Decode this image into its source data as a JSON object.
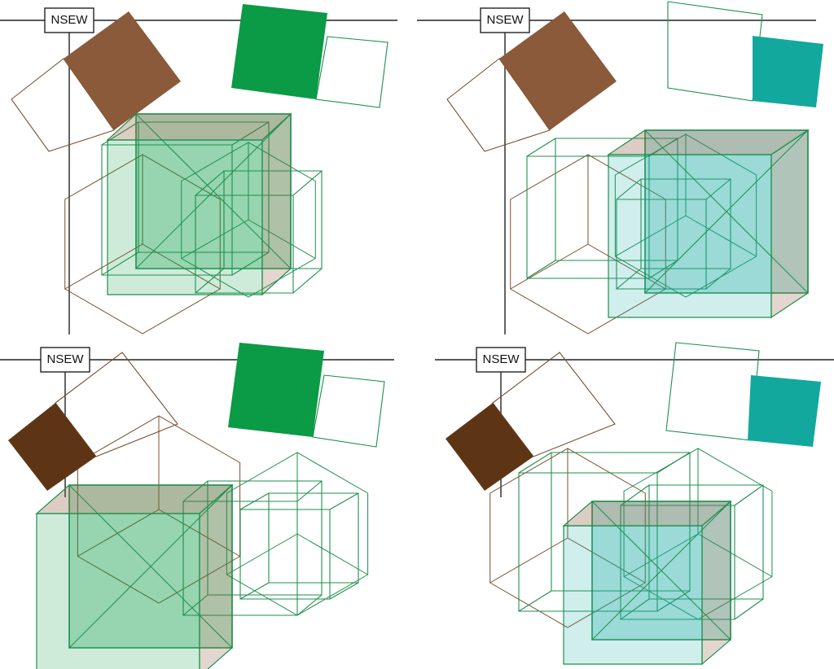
{
  "panels": [
    {
      "id": "top-left",
      "label": "NSEW",
      "square_left_color": "#8a5a3a",
      "square_right_color": "#0b9a45",
      "fill_a": "#0b9a45",
      "fill_b": "#8a5a3a",
      "edge_color": "#1e8f4e",
      "outline_color": "#7a4f2e"
    },
    {
      "id": "top-right",
      "label": "NSEW",
      "square_left_color": "#8a5a3a",
      "square_right_color": "#12a89e",
      "fill_a": "#12a89e",
      "fill_b": "#8a5a3a",
      "edge_color": "#1e8f4e",
      "outline_color": "#7a4f2e"
    },
    {
      "id": "bottom-left",
      "label": "NSEW",
      "square_left_color": "#5e3514",
      "square_right_color": "#0b9a45",
      "fill_a": "#0b9a45",
      "fill_b": "#8a5a3a",
      "edge_color": "#1e8f4e",
      "outline_color": "#7a4f2e"
    },
    {
      "id": "bottom-right",
      "label": "NSEW",
      "square_left_color": "#5e3514",
      "square_right_color": "#12a89e",
      "fill_a": "#12a89e",
      "fill_b": "#8a5a3a",
      "edge_color": "#1e8f4e",
      "outline_color": "#7a4f2e"
    }
  ]
}
